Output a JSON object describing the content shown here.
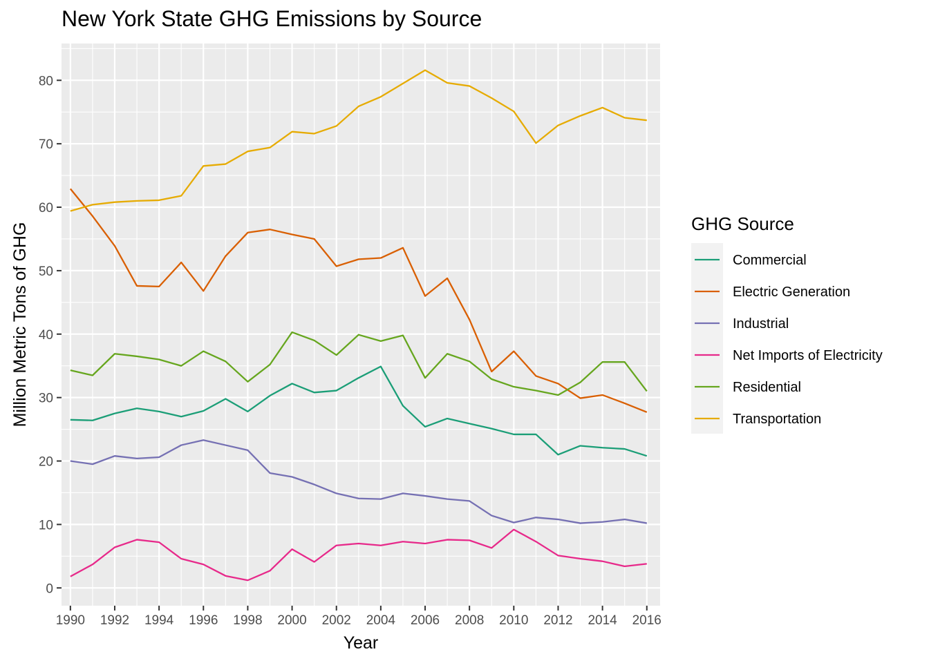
{
  "chart_data": {
    "type": "line",
    "title": "New York State GHG Emissions by Source",
    "xlabel": "Year",
    "ylabel": "Million Metric Tons of GHG",
    "xlim": [
      1989.6,
      2016.6
    ],
    "ylim": [
      -2.8,
      85.8
    ],
    "x_ticks": [
      1990,
      1992,
      1994,
      1996,
      1998,
      2000,
      2002,
      2004,
      2006,
      2008,
      2010,
      2012,
      2014,
      2016
    ],
    "y_ticks": [
      0,
      10,
      20,
      30,
      40,
      50,
      60,
      70,
      80
    ],
    "grid": true,
    "legend": {
      "title": "GHG Source",
      "position": "right"
    },
    "x": [
      1990,
      1991,
      1992,
      1993,
      1994,
      1995,
      1996,
      1997,
      1998,
      1999,
      2000,
      2001,
      2002,
      2003,
      2004,
      2005,
      2006,
      2007,
      2008,
      2009,
      2010,
      2011,
      2012,
      2013,
      2014,
      2015,
      2016
    ],
    "series": [
      {
        "name": "Commercial",
        "color": "#1b9e77",
        "values": [
          26.5,
          26.4,
          27.5,
          28.3,
          27.8,
          27.0,
          27.9,
          29.8,
          27.8,
          30.3,
          32.2,
          30.8,
          31.1,
          33.1,
          34.9,
          28.7,
          25.4,
          26.7,
          25.9,
          25.1,
          24.2,
          24.2,
          21.0,
          22.4,
          22.1,
          21.9,
          20.8
        ]
      },
      {
        "name": "Electric Generation",
        "color": "#d95f02",
        "values": [
          62.9,
          58.6,
          53.9,
          47.6,
          47.5,
          51.3,
          46.8,
          52.3,
          56.0,
          56.5,
          55.7,
          55.0,
          50.7,
          51.8,
          52.0,
          53.6,
          46.0,
          48.8,
          42.3,
          34.1,
          37.3,
          33.4,
          32.2,
          29.9,
          30.4,
          29.1,
          27.7
        ]
      },
      {
        "name": "Industrial",
        "color": "#7570b3",
        "values": [
          20.0,
          19.5,
          20.8,
          20.4,
          20.6,
          22.5,
          23.3,
          22.5,
          21.7,
          18.1,
          17.5,
          16.3,
          14.9,
          14.1,
          14.0,
          14.9,
          14.5,
          14.0,
          13.7,
          11.4,
          10.3,
          11.1,
          10.8,
          10.2,
          10.4,
          10.8,
          10.2
        ]
      },
      {
        "name": "Net Imports of Electricity",
        "color": "#e7298a",
        "values": [
          1.8,
          3.7,
          6.4,
          7.6,
          7.2,
          4.6,
          3.7,
          1.9,
          1.2,
          2.7,
          6.1,
          4.1,
          6.7,
          7.0,
          6.7,
          7.3,
          7.0,
          7.6,
          7.5,
          6.3,
          9.2,
          7.3,
          5.1,
          4.6,
          4.2,
          3.4,
          3.8
        ]
      },
      {
        "name": "Residential",
        "color": "#66a61e",
        "values": [
          34.3,
          33.5,
          36.9,
          36.5,
          36.0,
          35.0,
          37.3,
          35.7,
          32.5,
          35.2,
          40.3,
          39.0,
          36.7,
          39.9,
          38.9,
          39.8,
          33.1,
          36.9,
          35.7,
          32.9,
          31.7,
          31.1,
          30.4,
          32.4,
          35.6,
          35.6,
          31.0
        ]
      },
      {
        "name": "Transportation",
        "color": "#e6ab02",
        "values": [
          59.4,
          60.4,
          60.8,
          61.0,
          61.1,
          61.8,
          66.5,
          66.8,
          68.8,
          69.4,
          71.9,
          71.6,
          72.8,
          75.9,
          77.4,
          79.5,
          81.6,
          79.6,
          79.1,
          77.2,
          75.1,
          70.1,
          72.9,
          74.4,
          75.7,
          74.1,
          73.7
        ]
      }
    ]
  }
}
